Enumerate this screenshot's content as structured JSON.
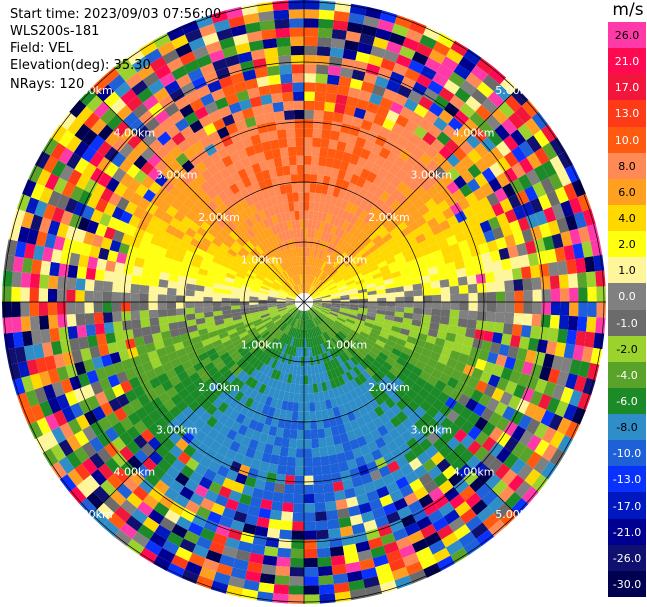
{
  "header": {
    "start_time": "Start time: 2023/09/03 07:56:00",
    "instrument": "WLS200s-181",
    "field": "Field: VEL",
    "elevation": "Elevation(deg): 35.30",
    "nrays": "NRays: 120"
  },
  "colorbar": {
    "unit": "m/s",
    "ticks": [
      "26.0",
      "21.0",
      "17.0",
      "13.0",
      "10.0",
      "8.0",
      "6.0",
      "4.0",
      "2.0",
      "1.0",
      "0.0",
      "-1.0",
      "-2.0",
      "-4.0",
      "-6.0",
      "-8.0",
      "-10.0",
      "-13.0",
      "-17.0",
      "-21.0",
      "-26.0",
      "-30.0"
    ],
    "colors": [
      "#ff3aa8",
      "#ff0a50",
      "#f2163d",
      "#ff3a18",
      "#ff5a10",
      "#ff8a55",
      "#ffa020",
      "#ffd800",
      "#ffff10",
      "#fff59a",
      "#808080",
      "#6b6b6b",
      "#9bd22e",
      "#5aa32a",
      "#1d8a28",
      "#2f8ec8",
      "#1e60d8",
      "#0a32ff",
      "#0018c0",
      "#000090",
      "#101070",
      "#000050"
    ]
  },
  "chart_data": {
    "type": "heatmap",
    "title": "",
    "field": "VEL",
    "units": "m/s",
    "nrays": 120,
    "elevation_deg": 35.3,
    "range_rings_km": [
      1.0,
      2.0,
      3.0,
      4.0,
      5.0
    ],
    "range_ring_labels": [
      "1.0km",
      "2.0km",
      "3.0km",
      "4.0km",
      "5.0km"
    ],
    "ring_label_texts": [
      "1.00km",
      "2.00km",
      "3.00km",
      "4.00km",
      "5.00km"
    ],
    "radial_spokes": 8,
    "velocity_scale": {
      "min": -30.0,
      "max": 26.0
    },
    "pattern_summary": {
      "north_near": "positive velocity 6 to 13 m/s (orange)",
      "center_band": "near zero (gray) along east-west axis",
      "south_near": "negative velocity -4 to -10 m/s (green/blue)",
      "beyond_3km": "noisy, full-spectrum values"
    }
  }
}
